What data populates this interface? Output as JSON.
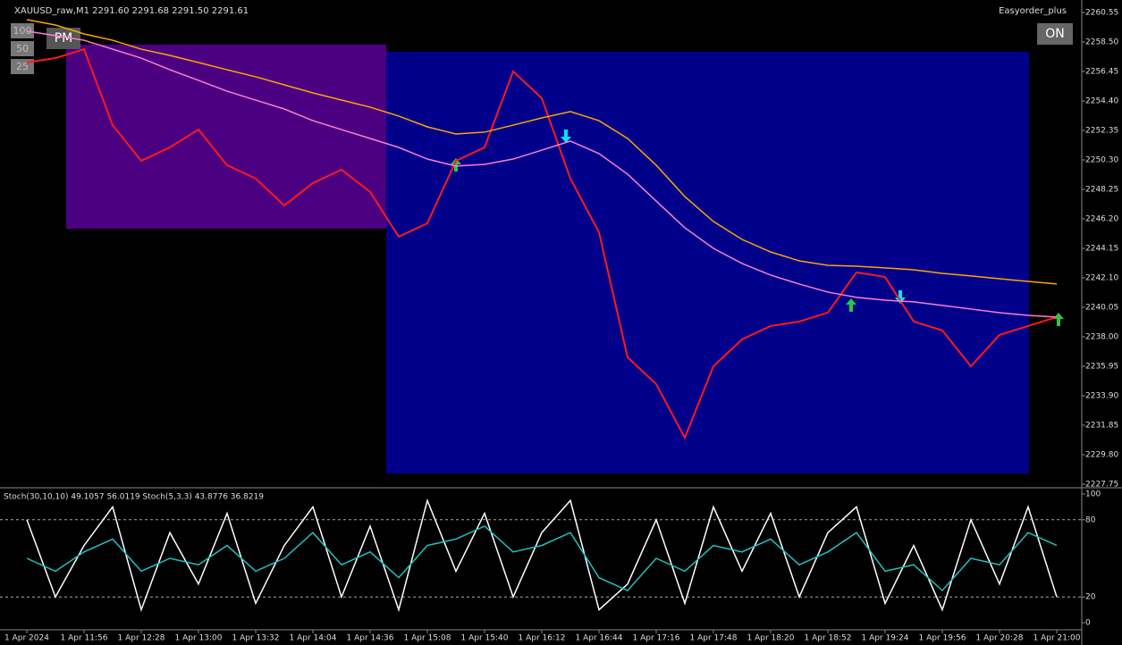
{
  "chart_data": [
    {
      "type": "line",
      "title": "XAUUSD_raw,M1  2291.60 2291.68 2291.50 2291.61",
      "ylim": [
        2227.75,
        2260.55
      ],
      "yticks": [
        2260.55,
        {
          "value": 2258.5,
          "label": "2258.50"
        },
        2256.45,
        {
          "value": 2254.4,
          "label": "2254.40"
        },
        2252.35,
        {
          "value": 2250.3,
          "label": "2250.30"
        },
        2248.25,
        {
          "value": 2246.2,
          "label": "2246.20"
        },
        2244.15,
        {
          "value": 2242.1,
          "label": "2242.10"
        },
        2240.05,
        {
          "value": 2238,
          "label": "2238.00"
        },
        2235.95,
        {
          "value": 2233.9,
          "label": "2233.90"
        },
        2231.85,
        {
          "value": 2229.8,
          "label": "2229.80"
        },
        2227.75
      ],
      "series": [
        {
          "color": "#ff1a1a",
          "values": [
            2257.07,
            2257.38,
            2258.0,
            2252.72,
            2250.24,
            2251.17,
            2252.41,
            2249.93,
            2249.0,
            2247.13,
            2248.69,
            2249.62,
            2248.07,
            2244.96,
            2245.89,
            2250.24,
            2251.17,
            2256.45,
            2254.59,
            2249.0,
            2245.27,
            2236.57,
            2234.71,
            2230.98,
            2235.95,
            2237.82,
            2238.75,
            2239.06,
            2239.68,
            2242.48,
            2242.16,
            2239.06,
            2238.44,
            2235.95,
            2238.13,
            2238.75,
            2239.37
          ]
        },
        {
          "color": "#ffa500",
          "values": [
            2260.05,
            2259.68,
            2259.06,
            2258.62,
            2258.0,
            2257.57,
            2257.07,
            2256.57,
            2256.08,
            2255.52,
            2254.96,
            2254.46,
            2253.97,
            2253.35,
            2252.6,
            2252.1,
            2252.23,
            2252.72,
            2253.22,
            2253.66,
            2253.03,
            2251.79,
            2249.93,
            2247.75,
            2246.02,
            2244.77,
            2243.9,
            2243.28,
            2242.97,
            2242.91,
            2242.79,
            2242.66,
            2242.41,
            2242.23,
            2242.04,
            2241.85,
            2241.67
          ]
        },
        {
          "color": "#ff7fc8",
          "values": [
            2259.25,
            2258.94,
            2258.62,
            2258.0,
            2257.38,
            2256.57,
            2255.83,
            2255.08,
            2254.46,
            2253.84,
            2253.03,
            2252.41,
            2251.79,
            2251.17,
            2250.36,
            2249.87,
            2249.99,
            2250.36,
            2250.98,
            2251.61,
            2250.74,
            2249.31,
            2247.44,
            2245.58,
            2244.15,
            2243.1,
            2242.29,
            2241.67,
            2241.11,
            2240.74,
            2240.55,
            2240.43,
            2240.18,
            2239.93,
            2239.68,
            2239.49,
            2239.37
          ]
        }
      ]
    },
    {
      "type": "line",
      "title": "Stoch(30,10,10) 49.1057 56.0119  Stoch(5,3,3) 43.8776 36.8219",
      "categories": [
        "1 Apr 2024",
        null,
        "1 Apr 11:56",
        null,
        "1 Apr 12:28",
        null,
        "1 Apr 13:00",
        null,
        "1 Apr 13:32",
        null,
        "1 Apr 14:04",
        null,
        "1 Apr 14:36",
        null,
        "1 Apr 15:08",
        null,
        "1 Apr 15:40",
        null,
        "1 Apr 16:12",
        null,
        "1 Apr 16:44",
        null,
        "1 Apr 17:16",
        null,
        "1 Apr 17:48",
        null,
        "1 Apr 18:20",
        null,
        "1 Apr 18:52",
        null,
        "1 Apr 19:24",
        null,
        "1 Apr 19:56",
        null,
        "1 Apr 20:28",
        null,
        "1 Apr 21:00"
      ],
      "ylim": [
        0,
        100
      ],
      "yticks": [
        100,
        80,
        20,
        0
      ],
      "series": [
        {
          "color": "#ffffff",
          "values": [
            80,
            20,
            60,
            90,
            10,
            70,
            30,
            85,
            15,
            60,
            90,
            20,
            75,
            10,
            95,
            40,
            85,
            20,
            70,
            95,
            10,
            30,
            80,
            15,
            90,
            40,
            85,
            20,
            70,
            90,
            15,
            60,
            10,
            80,
            30,
            90,
            20
          ]
        },
        {
          "color": "#20c0c0",
          "values": [
            50,
            40,
            55,
            65,
            40,
            50,
            45,
            60,
            40,
            50,
            70,
            45,
            55,
            35,
            60,
            65,
            75,
            55,
            60,
            70,
            35,
            25,
            50,
            40,
            60,
            55,
            65,
            45,
            55,
            70,
            40,
            45,
            25,
            50,
            45,
            70,
            60
          ]
        }
      ]
    }
  ],
  "ui": {
    "expert": "Easyorder_plus",
    "on_button": "ON",
    "pm_button": "PM",
    "levels": [
      "100",
      "50",
      "25"
    ]
  }
}
